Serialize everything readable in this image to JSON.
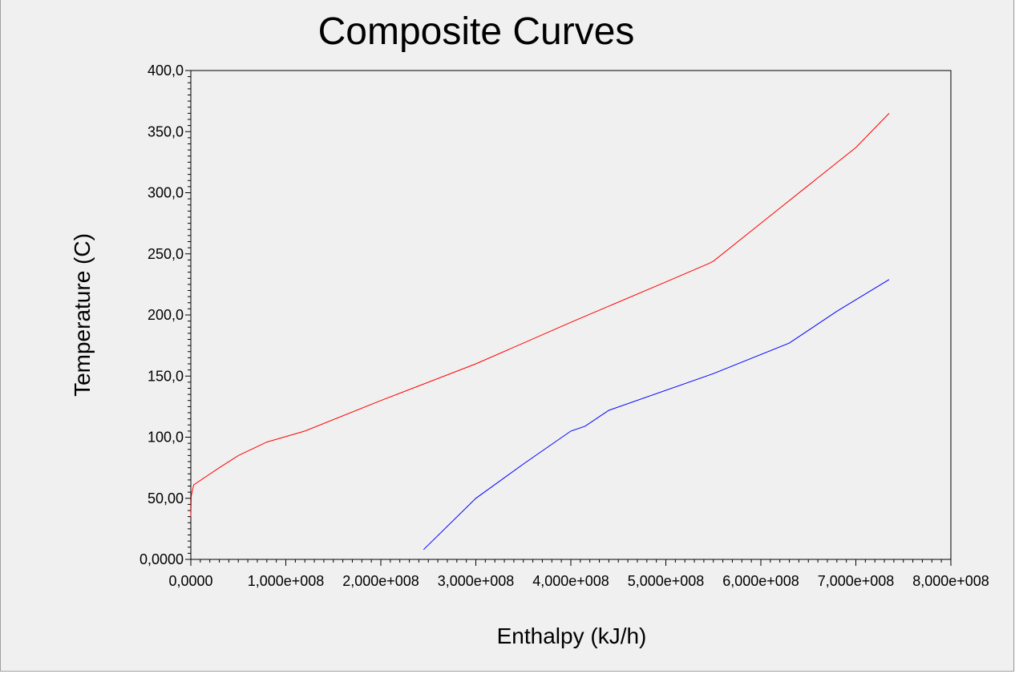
{
  "chart_data": {
    "type": "line",
    "title": "Composite Curves",
    "xlabel": "Enthalpy (kJ/h)",
    "ylabel": "Temperature (C)",
    "xlim": [
      0,
      800000000
    ],
    "ylim": [
      0,
      400
    ],
    "grid": false,
    "x_tick_labels": [
      "0,0000",
      "1,000e+008",
      "2,000e+008",
      "3,000e+008",
      "4,000e+008",
      "5,000e+008",
      "6,000e+008",
      "7,000e+008",
      "8,000e+008"
    ],
    "y_tick_labels": [
      "0,0000",
      "50,00",
      "100,0",
      "150,0",
      "200,0",
      "250,0",
      "300,0",
      "350,0",
      "400,0"
    ],
    "series": [
      {
        "color": "#ff0000",
        "x": [
          0,
          500000,
          3000000,
          30000000,
          50000000,
          80000000,
          120000000,
          200000000,
          300000000,
          400000000,
          500000000,
          545000000,
          550000000,
          600000000,
          650000000,
          700000000,
          735000000
        ],
        "y": [
          35,
          52,
          61,
          75,
          85,
          96,
          105,
          130,
          160,
          194,
          227,
          242,
          244,
          275,
          306,
          337,
          365
        ]
      },
      {
        "color": "#0000ff",
        "x": [
          245000000,
          300000000,
          350000000,
          400000000,
          415000000,
          440000000,
          550000000,
          630000000,
          680000000,
          735000000
        ],
        "y": [
          8,
          50,
          78,
          105,
          109,
          122,
          152,
          177,
          203,
          229
        ]
      }
    ]
  }
}
